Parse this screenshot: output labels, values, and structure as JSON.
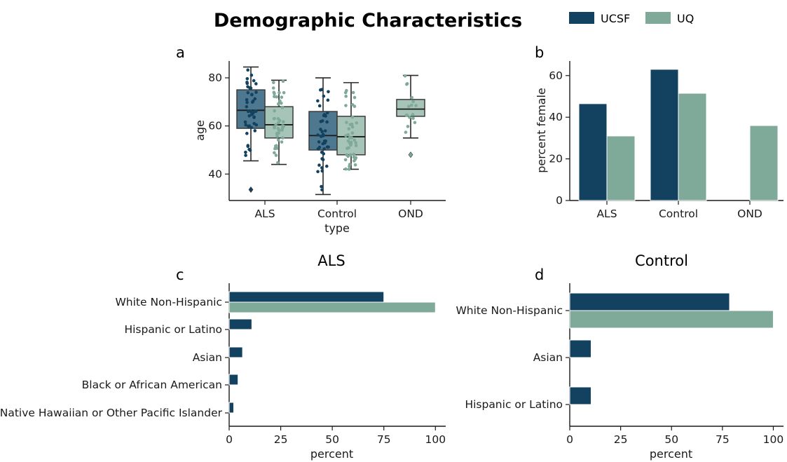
{
  "title": "Demographic Characteristics",
  "legend": [
    {
      "name": "UCSF",
      "color": "#12425F"
    },
    {
      "name": "UQ",
      "color": "#7FAA99"
    }
  ],
  "chart_data": [
    {
      "panel": "a",
      "type": "box",
      "xlabel": "type",
      "ylabel": "age",
      "categories": [
        "ALS",
        "Control",
        "OND"
      ],
      "yticks": [
        40,
        60,
        80
      ],
      "ylim": [
        29,
        87
      ],
      "series": [
        {
          "name": "UCSF",
          "boxes": [
            {
              "category": "ALS",
              "whisker_low": 45.5,
              "q1": 59,
              "median": 66.5,
              "q3": 75,
              "whisker_high": 84.5,
              "outliers": [
                33.5
              ]
            },
            {
              "category": "Control",
              "whisker_low": 31.5,
              "q1": 50,
              "median": 56,
              "q3": 66,
              "whisker_high": 80,
              "outliers": []
            }
          ]
        },
        {
          "name": "UQ",
          "boxes": [
            {
              "category": "ALS",
              "whisker_low": 44,
              "q1": 55,
              "median": 60.5,
              "q3": 68,
              "whisker_high": 79,
              "outliers": []
            },
            {
              "category": "Control",
              "whisker_low": 42,
              "q1": 48,
              "median": 55.5,
              "q3": 64,
              "whisker_high": 78,
              "outliers": []
            },
            {
              "category": "OND",
              "whisker_low": 55,
              "q1": 64,
              "median": 67,
              "q3": 71,
              "whisker_high": 81,
              "outliers": [
                48
              ]
            }
          ]
        }
      ],
      "grid": false
    },
    {
      "panel": "b",
      "type": "bar",
      "ylabel": "percent female",
      "categories": [
        "ALS",
        "Control",
        "OND"
      ],
      "yticks": [
        0,
        20,
        40,
        60
      ],
      "ylim": [
        0,
        67
      ],
      "series": [
        {
          "name": "UCSF",
          "values": [
            46.5,
            63,
            null
          ]
        },
        {
          "name": "UQ",
          "values": [
            31,
            51.5,
            36
          ]
        }
      ],
      "grid": false
    },
    {
      "panel": "c",
      "type": "bar",
      "orientation": "horizontal",
      "title": "ALS",
      "xlabel": "percent",
      "xticks": [
        0,
        25,
        50,
        75,
        100
      ],
      "xlim": [
        0,
        105
      ],
      "categories": [
        "White Non-Hispanic",
        "Hispanic or Latino",
        "Asian",
        "Black or African American",
        "Native Hawaiian or Other Pacific Islander"
      ],
      "series": [
        {
          "name": "UCSF",
          "values": [
            75,
            11,
            6.5,
            4.3,
            2.2
          ]
        },
        {
          "name": "UQ",
          "values": [
            100,
            null,
            null,
            null,
            null
          ]
        }
      ],
      "grid": false
    },
    {
      "panel": "d",
      "type": "bar",
      "orientation": "horizontal",
      "title": "Control",
      "xlabel": "percent",
      "xticks": [
        0,
        25,
        50,
        75,
        100
      ],
      "xlim": [
        0,
        105
      ],
      "categories": [
        "White Non-Hispanic",
        "Asian",
        "Hispanic or Latino"
      ],
      "series": [
        {
          "name": "UCSF",
          "values": [
            78.5,
            10.5,
            10.5
          ]
        },
        {
          "name": "UQ",
          "values": [
            100,
            null,
            null
          ]
        }
      ],
      "grid": false
    }
  ]
}
